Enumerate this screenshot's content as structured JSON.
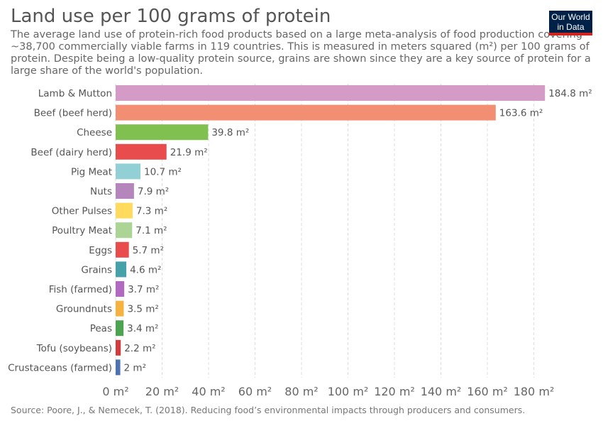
{
  "header": {
    "title": "Land use per 100 grams of protein",
    "subtitle": "The average land use of protein-rich food products based on a large meta-analysis of food production covering ~38,700 commercially viable farms in 119 countries. This is measured in meters squared (m²) per 100 grams of protein. Despite being a low-quality protein source, grains are shown since they are a key source of protein for a large share of the world's population.",
    "logo_line1": "Our World",
    "logo_line2": "in Data"
  },
  "footer": {
    "source": "Source: Poore, J., & Nemecek, T. (2018). Reducing food’s environmental impacts through producers and consumers."
  },
  "colors": {
    "logo_bg": "#002147",
    "logo_accent": "#ce261e"
  },
  "chart_data": {
    "type": "bar",
    "orientation": "horizontal",
    "unit": "m²",
    "xlim": [
      0,
      180
    ],
    "x_ticks": [
      0,
      20,
      40,
      60,
      80,
      100,
      120,
      140,
      160,
      180
    ],
    "grid": "vertical dashed",
    "categories": [
      "Lamb & Mutton",
      "Beef (beef herd)",
      "Cheese",
      "Beef (dairy herd)",
      "Pig Meat",
      "Nuts",
      "Other Pulses",
      "Poultry Meat",
      "Eggs",
      "Grains",
      "Fish (farmed)",
      "Groundnuts",
      "Peas",
      "Tofu (soybeans)",
      "Crustaceans (farmed)"
    ],
    "values": [
      184.8,
      163.6,
      39.8,
      21.9,
      10.7,
      7.9,
      7.3,
      7.1,
      5.7,
      4.6,
      3.7,
      3.5,
      3.4,
      2.2,
      2
    ],
    "value_labels": [
      "184.8 m²",
      "163.6 m²",
      "39.8 m²",
      "21.9 m²",
      "10.7 m²",
      "7.9 m²",
      "7.3 m²",
      "7.1 m²",
      "5.7 m²",
      "4.6 m²",
      "3.7 m²",
      "3.5 m²",
      "3.4 m²",
      "2.2 m²",
      "2 m²"
    ],
    "bar_colors": [
      "#d49bc6",
      "#f28e72",
      "#80c050",
      "#e84c4c",
      "#92d0d6",
      "#b586bc",
      "#fedb5c",
      "#acd495",
      "#e84c4c",
      "#47a1a9",
      "#b269c2",
      "#f5b240",
      "#4ca450",
      "#d33c3c",
      "#4d72b4"
    ]
  }
}
